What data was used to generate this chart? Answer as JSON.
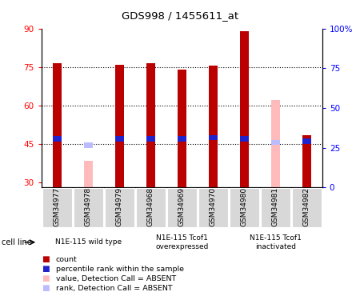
{
  "title": "GDS998 / 1455611_at",
  "samples": [
    "GSM34977",
    "GSM34978",
    "GSM34979",
    "GSM34968",
    "GSM34969",
    "GSM34970",
    "GSM34980",
    "GSM34981",
    "GSM34982"
  ],
  "red_values": [
    76.5,
    null,
    76.0,
    76.5,
    74.0,
    75.5,
    89.0,
    null,
    48.5
  ],
  "blue_values": [
    47.0,
    null,
    47.0,
    47.0,
    47.0,
    47.5,
    47.0,
    null,
    46.0
  ],
  "pink_values": [
    null,
    38.5,
    null,
    null,
    null,
    null,
    null,
    62.0,
    null
  ],
  "lavender_values": [
    null,
    44.5,
    null,
    null,
    null,
    null,
    null,
    45.5,
    null
  ],
  "ylim_left": [
    28,
    90
  ],
  "ylim_right": [
    0,
    100
  ],
  "yticks_left": [
    30,
    45,
    60,
    75,
    90
  ],
  "yticks_right": [
    0,
    25,
    50,
    75,
    100
  ],
  "ytick_labels_left": [
    "30",
    "45",
    "60",
    "75",
    "90"
  ],
  "ytick_labels_right": [
    "0",
    "25",
    "50",
    "75",
    "100%"
  ],
  "gridlines": [
    45,
    60,
    75
  ],
  "groups": [
    {
      "label": "N1E-115 wild type",
      "span": [
        0,
        2
      ],
      "color": "#b8f0b8"
    },
    {
      "label": "N1E-115 Tcof1\noverexpressed",
      "span": [
        3,
        5
      ],
      "color": "#90e890"
    },
    {
      "label": "N1E-115 Tcof1\ninactivated",
      "span": [
        6,
        8
      ],
      "color": "#b8f0b8"
    }
  ],
  "bar_width": 0.28,
  "bar_color_red": "#bb0000",
  "bar_color_blue": "#2222cc",
  "bar_color_pink": "#ffbbbb",
  "bar_color_lavender": "#bbbbff",
  "bar_bottom": 28,
  "legend_items": [
    {
      "color": "#bb0000",
      "label": "count"
    },
    {
      "color": "#2222cc",
      "label": "percentile rank within the sample"
    },
    {
      "color": "#ffbbbb",
      "label": "value, Detection Call = ABSENT"
    },
    {
      "color": "#bbbbff",
      "label": "rank, Detection Call = ABSENT"
    }
  ]
}
